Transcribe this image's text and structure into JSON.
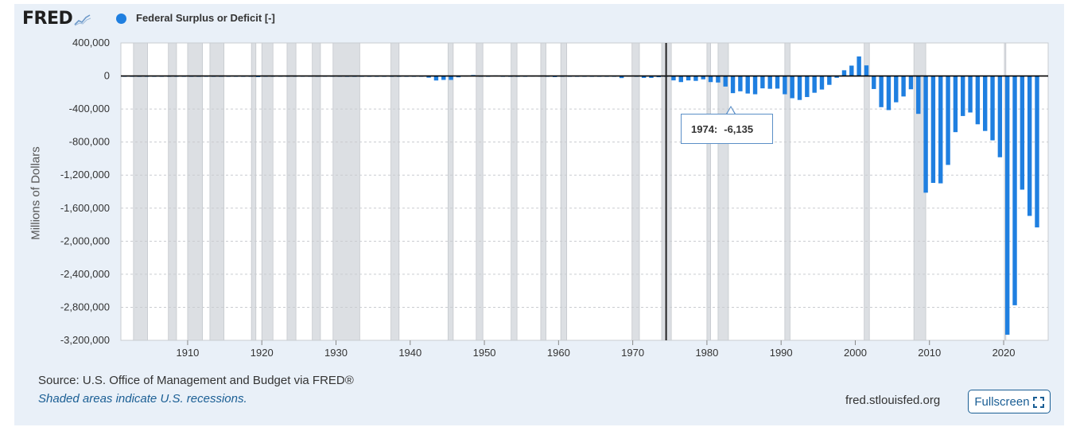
{
  "header": {
    "logo_text": "FRED",
    "logo_icon": "chart-line-icon",
    "series_label": "Federal Surplus or Deficit [-]"
  },
  "colors": {
    "bar": "#1f7fe0",
    "recession": "#dcdfe3",
    "panel": "#e9f0f8",
    "accent": "#1a5e94"
  },
  "footer": {
    "source": "Source: U.S. Office of Management and Budget via FRED®",
    "note": "Shaded areas indicate U.S. recessions.",
    "site": "fred.stlouisfed.org",
    "fullscreen_label": "Fullscreen",
    "fullscreen_icon": "expand-icon"
  },
  "tooltip": {
    "year": "1974:",
    "value": "-6,135"
  },
  "chart_data": {
    "type": "bar",
    "title": "Federal Surplus or Deficit [-]",
    "xlabel": "",
    "ylabel": "Millions of Dollars",
    "xlim": [
      1901,
      2025
    ],
    "ylim": [
      -3200000,
      400000
    ],
    "y_ticks": [
      400000,
      0,
      -400000,
      -800000,
      -1200000,
      -1600000,
      -2000000,
      -2400000,
      -2800000,
      -3200000
    ],
    "y_tick_labels": [
      "400,000",
      "0",
      "-400,000",
      "-800,000",
      "-1,200,000",
      "-1,600,000",
      "-2,000,000",
      "-2,400,000",
      "-2,800,000",
      "-3,200,000"
    ],
    "x_ticks": [
      1910,
      1920,
      1930,
      1940,
      1950,
      1960,
      1970,
      1980,
      1990,
      2000,
      2010,
      2020
    ],
    "x_tick_labels": [
      "1910",
      "1920",
      "1930",
      "1940",
      "1950",
      "1960",
      "1970",
      "1980",
      "1990",
      "2000",
      "2010",
      "2020"
    ],
    "grid": true,
    "recessions": [
      [
        1902.7,
        1904.6
      ],
      [
        1907.4,
        1908.5
      ],
      [
        1910.0,
        1912.0
      ],
      [
        1913.0,
        1914.9
      ],
      [
        1918.6,
        1919.2
      ],
      [
        1920.0,
        1921.5
      ],
      [
        1923.4,
        1924.6
      ],
      [
        1926.8,
        1927.9
      ],
      [
        1929.6,
        1933.2
      ],
      [
        1937.4,
        1938.5
      ],
      [
        1945.1,
        1945.8
      ],
      [
        1948.9,
        1949.8
      ],
      [
        1953.6,
        1954.4
      ],
      [
        1957.6,
        1958.3
      ],
      [
        1960.3,
        1961.1
      ],
      [
        1969.9,
        1970.9
      ],
      [
        1973.9,
        1975.2
      ],
      [
        1980.0,
        1980.5
      ],
      [
        1981.5,
        1982.9
      ],
      [
        1990.5,
        1991.2
      ],
      [
        2001.2,
        2001.9
      ],
      [
        2007.9,
        2009.5
      ],
      [
        2020.1,
        2020.3
      ]
    ],
    "highlight": {
      "x": 1974,
      "value": -6135
    },
    "series": [
      {
        "name": "Federal Surplus or Deficit [-]",
        "x": [
          1901,
          1902,
          1903,
          1904,
          1905,
          1906,
          1907,
          1908,
          1909,
          1910,
          1911,
          1912,
          1913,
          1914,
          1915,
          1916,
          1917,
          1918,
          1919,
          1920,
          1921,
          1922,
          1923,
          1924,
          1925,
          1926,
          1927,
          1928,
          1929,
          1930,
          1931,
          1932,
          1933,
          1934,
          1935,
          1936,
          1937,
          1938,
          1939,
          1940,
          1941,
          1942,
          1943,
          1944,
          1945,
          1946,
          1947,
          1948,
          1949,
          1950,
          1951,
          1952,
          1953,
          1954,
          1955,
          1956,
          1957,
          1958,
          1959,
          1960,
          1961,
          1962,
          1963,
          1964,
          1965,
          1966,
          1967,
          1968,
          1969,
          1970,
          1971,
          1972,
          1973,
          1974,
          1975,
          1976,
          1977,
          1978,
          1979,
          1980,
          1981,
          1982,
          1983,
          1984,
          1985,
          1986,
          1987,
          1988,
          1989,
          1990,
          1991,
          1992,
          1993,
          1994,
          1995,
          1996,
          1997,
          1998,
          1999,
          2000,
          2001,
          2002,
          2003,
          2004,
          2005,
          2006,
          2007,
          2008,
          2009,
          2010,
          2011,
          2012,
          2013,
          2014,
          2015,
          2016,
          2017,
          2018,
          2019,
          2020,
          2021,
          2022,
          2023,
          2024
        ],
        "values": [
          63,
          8,
          9,
          -42,
          -23,
          25,
          87,
          -57,
          -89,
          -18,
          11,
          3,
          0,
          -35,
          -63,
          48,
          -853,
          -9032,
          -13363,
          291,
          509,
          736,
          713,
          963,
          717,
          865,
          1155,
          939,
          734,
          738,
          -462,
          -2735,
          -2602,
          -3586,
          -2803,
          -4304,
          -2193,
          -89,
          -2846,
          -2920,
          -4941,
          -20503,
          -54554,
          -47557,
          -47553,
          -15936,
          4018,
          11796,
          580,
          -3119,
          6102,
          -1519,
          -6493,
          -1154,
          -2993,
          3947,
          3412,
          -2769,
          -12849,
          301,
          -3335,
          -7146,
          -4756,
          -5915,
          -1411,
          -3698,
          -8643,
          -25161,
          3242,
          -2842,
          -23033,
          -23373,
          -14908,
          -6135,
          -53242,
          -73732,
          -53659,
          -59185,
          -40726,
          -73830,
          -78968,
          -127977,
          -207802,
          -185367,
          -212308,
          -221227,
          -149730,
          -155178,
          -152639,
          -221036,
          -269238,
          -290321,
          -255051,
          -203186,
          -163952,
          -107431,
          -21884,
          69270,
          125610,
          236241,
          128236,
          -157758,
          -377585,
          -412727,
          -318346,
          -248181,
          -160701,
          -458553,
          -1412688,
          -1294373,
          -1299599,
          -1076573,
          -679775,
          -484600,
          -442002,
          -584651,
          -665446,
          -779137,
          -983601,
          -3131917,
          -2775337,
          -1375905,
          -1693723,
          -1832817
        ]
      }
    ]
  }
}
